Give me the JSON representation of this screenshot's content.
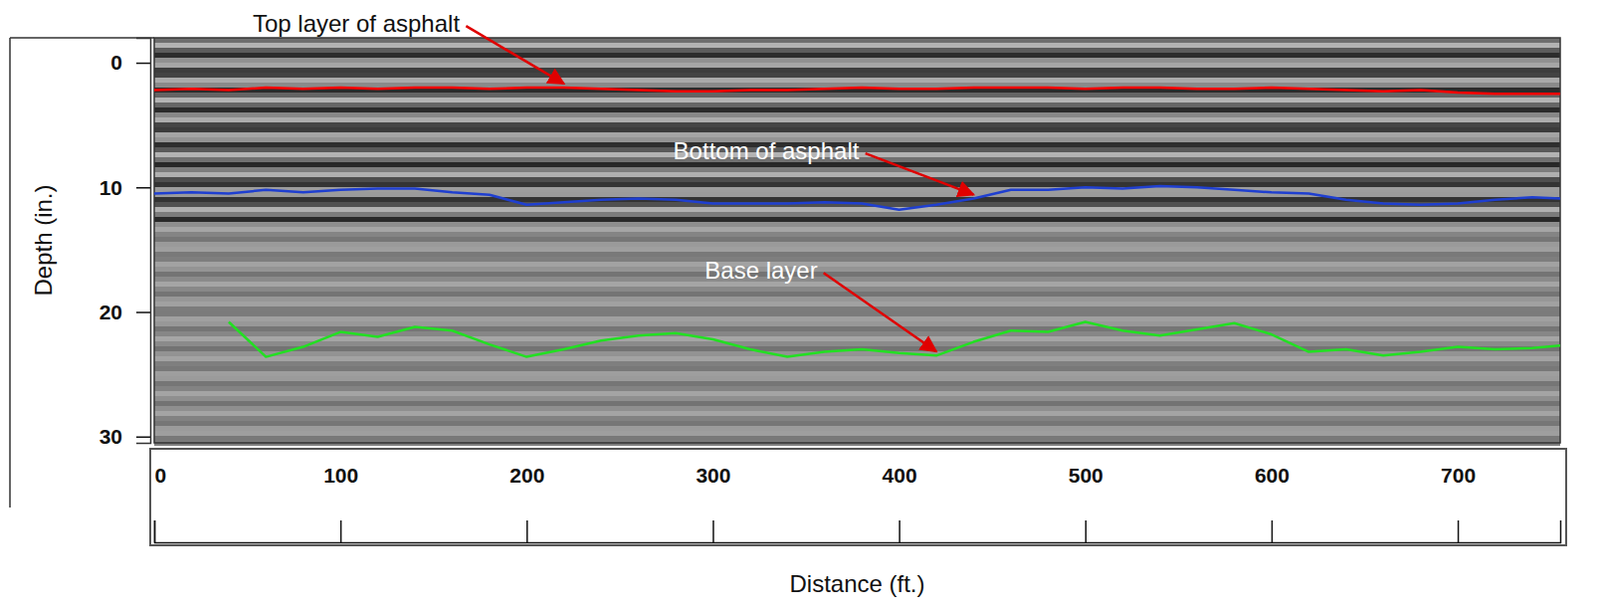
{
  "chart_data": {
    "type": "line",
    "x_label": "Distance (ft.)",
    "y_label": "Depth (in.)",
    "annotations": [
      "Top layer of asphalt",
      "Bottom of asphalt",
      "Base layer"
    ],
    "x": [
      0,
      20,
      40,
      60,
      80,
      100,
      120,
      140,
      160,
      180,
      200,
      220,
      240,
      260,
      280,
      300,
      320,
      340,
      360,
      380,
      400,
      420,
      440,
      460,
      480,
      500,
      520,
      540,
      560,
      580,
      600,
      620,
      640,
      660,
      680,
      700,
      720,
      740,
      755
    ],
    "xlim": [
      0,
      755
    ],
    "xticks": [
      0,
      100,
      200,
      300,
      400,
      500,
      600,
      700
    ],
    "ylim": [
      -2,
      30.5
    ],
    "yticks": [
      0,
      10,
      20,
      30
    ],
    "series": [
      {
        "color": "#ff0000",
        "values": [
          2.2,
          2.1,
          2.2,
          2.0,
          2.1,
          2.0,
          2.1,
          2.0,
          2.0,
          2.1,
          2.0,
          2.0,
          2.1,
          2.2,
          2.3,
          2.3,
          2.2,
          2.2,
          2.1,
          2.0,
          2.1,
          2.1,
          2.0,
          2.0,
          2.0,
          2.1,
          2.0,
          2.0,
          2.1,
          2.1,
          2.0,
          2.1,
          2.2,
          2.3,
          2.2,
          2.4,
          2.5,
          2.5,
          2.5
        ]
      },
      {
        "color": "#1f3fd0",
        "values": [
          10.5,
          10.4,
          10.5,
          10.2,
          10.4,
          10.2,
          10.1,
          10.1,
          10.4,
          10.6,
          11.4,
          11.2,
          11.0,
          10.9,
          11.0,
          11.3,
          11.3,
          11.3,
          11.2,
          11.3,
          11.8,
          11.4,
          10.9,
          10.2,
          10.2,
          10.0,
          10.1,
          9.9,
          10.0,
          10.2,
          10.4,
          10.5,
          11.0,
          11.3,
          11.4,
          11.3,
          11.0,
          10.8,
          10.9
        ]
      },
      {
        "color": "#22e022",
        "values": [
          null,
          null,
          20.8,
          23.6,
          22.8,
          21.6,
          22.0,
          21.2,
          21.5,
          22.6,
          23.6,
          23.0,
          22.3,
          21.9,
          21.7,
          22.2,
          23.0,
          23.6,
          23.2,
          23.0,
          23.3,
          23.5,
          22.4,
          21.5,
          21.6,
          20.8,
          21.5,
          21.9,
          21.4,
          20.9,
          21.8,
          23.2,
          23.0,
          23.5,
          23.2,
          22.8,
          23.0,
          22.9,
          22.7
        ]
      }
    ]
  }
}
